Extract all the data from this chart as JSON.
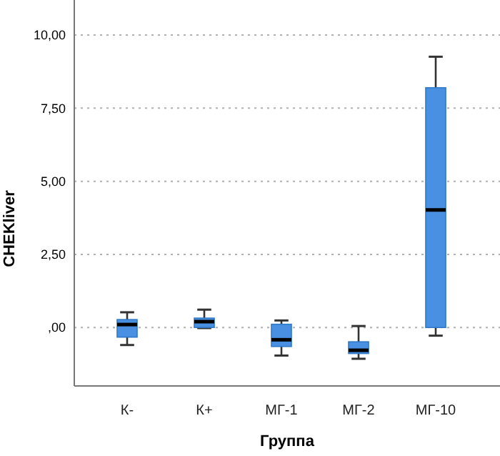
{
  "chart_data": {
    "type": "box",
    "xlabel": "Группа",
    "ylabel": "CHEKliver",
    "categories": [
      "К-",
      "К+",
      "МГ-1",
      "МГ-2",
      "МГ-10"
    ],
    "color": "#4a90e2",
    "boxes": [
      {
        "low": -0.6,
        "q1": -0.33,
        "median": 0.1,
        "q3": 0.27,
        "high": 0.52
      },
      {
        "low": -0.02,
        "q1": 0.0,
        "median": 0.2,
        "q3": 0.32,
        "high": 0.61
      },
      {
        "low": -0.96,
        "q1": -0.65,
        "median": -0.42,
        "q3": 0.11,
        "high": 0.24
      },
      {
        "low": -1.07,
        "q1": -0.89,
        "median": -0.78,
        "q3": -0.49,
        "high": 0.05
      },
      {
        "low": -0.28,
        "q1": 0.0,
        "median": 4.02,
        "q3": 8.2,
        "high": 9.26
      }
    ],
    "ylim": [
      -2,
      11.2
    ],
    "yticks": [
      {
        "value": 0,
        "label": ",00"
      },
      {
        "value": 2.5,
        "label": "2,50"
      },
      {
        "value": 5,
        "label": "5,00"
      },
      {
        "value": 7.5,
        "label": "7,50"
      },
      {
        "value": 10,
        "label": "10,00"
      }
    ],
    "grid": "y"
  }
}
